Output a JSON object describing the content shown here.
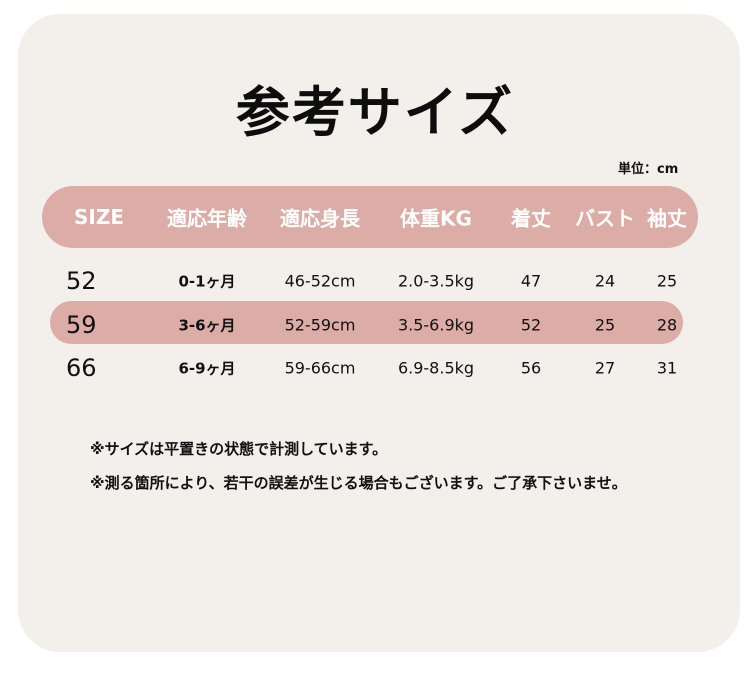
{
  "title": "参考サイズ",
  "unit_label": "単位：cm",
  "colors": {
    "card_bg": "#f3efeb",
    "header_bg": "#dcaca7",
    "header_text": "#ffffff"
  },
  "table": {
    "headers": [
      "SIZE",
      "適応年齢",
      "適応身長",
      "体重KG",
      "着丈",
      "バスト",
      "袖丈"
    ],
    "rows": [
      [
        "52",
        "0-1ヶ月",
        "46-52cm",
        "2.0-3.5kg",
        "47",
        "24",
        "25"
      ],
      [
        "59",
        "3-6ヶ月",
        "52-59cm",
        "3.5-6.9kg",
        "52",
        "25",
        "28"
      ],
      [
        "66",
        "6-9ヶ月",
        "59-66cm",
        "6.9-8.5kg",
        "56",
        "27",
        "31"
      ]
    ],
    "highlighted_row": 1
  },
  "notes": [
    "※サイズは平置きの状態で計測しています。",
    "※測る箇所により、若干の誤差が生じる場合もございます。ご了承下さいませ。"
  ]
}
